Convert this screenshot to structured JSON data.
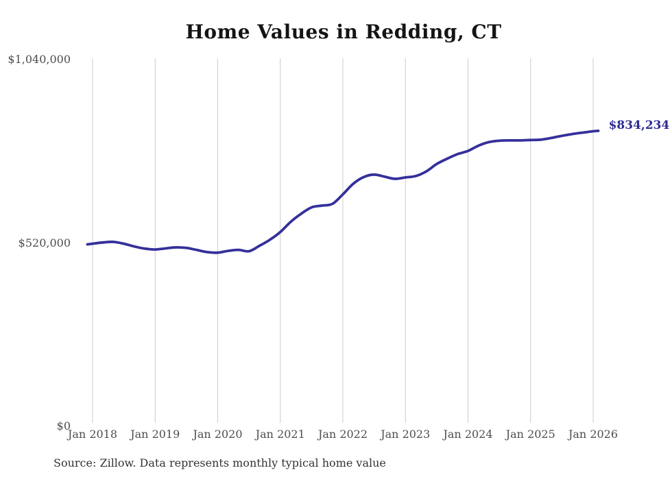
{
  "chart_data": {
    "type": "line",
    "title": "Home Values in Redding, CT",
    "xlabel": "",
    "ylabel": "",
    "ylim": [
      0,
      1040000
    ],
    "grid": "vertical-only",
    "legend": "none",
    "end_label": "$834,234",
    "latest_value": 834234,
    "x_ticks": [
      "Jan 2018",
      "Jan 2019",
      "Jan 2020",
      "Jan 2021",
      "Jan 2022",
      "Jan 2023",
      "Jan 2024",
      "Jan 2025",
      "Jan 2026"
    ],
    "y_ticks": [
      {
        "label": "$0",
        "value": 0
      },
      {
        "label": "$520,000",
        "value": 520000
      },
      {
        "label": "$1,040,000",
        "value": 1040000
      }
    ],
    "series": [
      {
        "name": "Monthly typical home value",
        "points": [
          [
            "Dec 2017",
            512000
          ],
          [
            "Jan 2018",
            514000
          ],
          [
            "Mar 2018",
            517500
          ],
          [
            "May 2018",
            519000
          ],
          [
            "Jul 2018",
            514000
          ],
          [
            "Sep 2018",
            506000
          ],
          [
            "Nov 2018",
            500000
          ],
          [
            "Jan 2019",
            497500
          ],
          [
            "Mar 2019",
            500500
          ],
          [
            "May 2019",
            503500
          ],
          [
            "Jul 2019",
            502000
          ],
          [
            "Sep 2019",
            496000
          ],
          [
            "Nov 2019",
            490000
          ],
          [
            "Jan 2020",
            488500
          ],
          [
            "Mar 2020",
            493500
          ],
          [
            "May 2020",
            496500
          ],
          [
            "Jul 2020",
            492500
          ],
          [
            "Sep 2020",
            508000
          ],
          [
            "Nov 2020",
            525000
          ],
          [
            "Jan 2021",
            547000
          ],
          [
            "Mar 2021",
            576000
          ],
          [
            "May 2021",
            599000
          ],
          [
            "Jul 2021",
            617000
          ],
          [
            "Sep 2021",
            622000
          ],
          [
            "Nov 2021",
            627000
          ],
          [
            "Jan 2022",
            654000
          ],
          [
            "Mar 2022",
            684000
          ],
          [
            "May 2022",
            703000
          ],
          [
            "Jul 2022",
            710000
          ],
          [
            "Sep 2022",
            704000
          ],
          [
            "Nov 2022",
            698000
          ],
          [
            "Jan 2023",
            702000
          ],
          [
            "Mar 2023",
            706000
          ],
          [
            "May 2023",
            719000
          ],
          [
            "Jul 2023",
            740000
          ],
          [
            "Sep 2023",
            755000
          ],
          [
            "Nov 2023",
            768000
          ],
          [
            "Jan 2024",
            777000
          ],
          [
            "Mar 2024",
            792000
          ],
          [
            "May 2024",
            802000
          ],
          [
            "Jul 2024",
            806000
          ],
          [
            "Sep 2024",
            807000
          ],
          [
            "Nov 2024",
            807000
          ],
          [
            "Jan 2025",
            808000
          ],
          [
            "Mar 2025",
            809000
          ],
          [
            "May 2025",
            814000
          ],
          [
            "Jul 2025",
            820000
          ],
          [
            "Sep 2025",
            825000
          ],
          [
            "Nov 2025",
            829000
          ],
          [
            "Jan 2026",
            833000
          ],
          [
            "Feb 2026",
            834234
          ]
        ]
      }
    ],
    "colors": {
      "line": "#35309a",
      "grid": "#cccccc",
      "tick_text": "#4d4d4d",
      "title_text": "#141414",
      "end_label_text": "#2e2b96",
      "footer_text": "#333333",
      "background": "#ffffff"
    }
  },
  "footer": {
    "text": "Source: Zillow. Data represents monthly typical home value"
  }
}
